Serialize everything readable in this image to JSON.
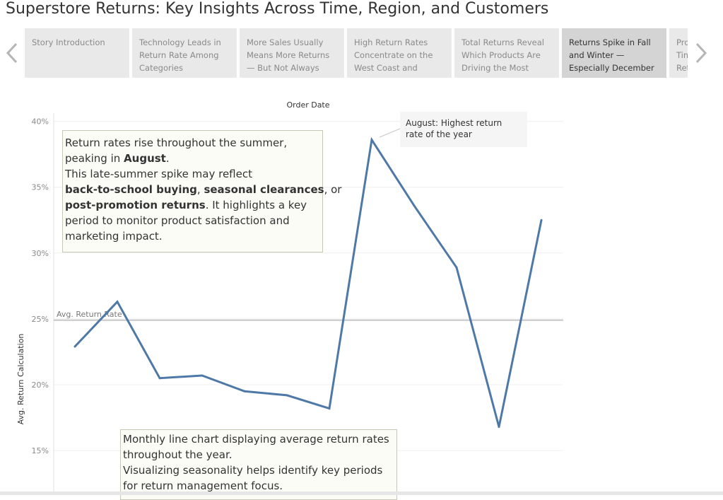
{
  "page_title": "Superstore Returns: Key Insights Across Time, Region, and Customers",
  "story_points": [
    {
      "lines": [
        "Story Introduction"
      ],
      "active": false
    },
    {
      "lines": [
        "Technology Leads in",
        "Return Rate Among",
        "Categories"
      ],
      "active": false
    },
    {
      "lines": [
        "More Sales Usually",
        "Means More Returns",
        "— But Not Always"
      ],
      "active": false
    },
    {
      "lines": [
        "High Return Rates",
        "Concentrate on the",
        "West Coast and"
      ],
      "active": false
    },
    {
      "lines": [
        "Total Returns Reveal",
        "Which Products Are",
        "Driving the Most"
      ],
      "active": false
    },
    {
      "lines": [
        "Returns Spike in Fall",
        "and Winter —",
        "Especially December"
      ],
      "active": true
    },
    {
      "lines": [
        "Pro",
        "Tim",
        "Ret"
      ],
      "active": false
    }
  ],
  "nav": {
    "prev_icon": "chevron-left-icon",
    "next_icon": "chevron-right-icon"
  },
  "colors": {
    "line": "#4e79a7",
    "reference_line": "#c8c8c8",
    "gridline": "#efefef"
  },
  "chart_data": {
    "type": "line",
    "xlabel": "Order Date",
    "ylabel": "Avg. Return Calculation",
    "ylim": [
      0.13,
      0.41
    ],
    "yticks": [
      {
        "value": 0.15,
        "label": "15%"
      },
      {
        "value": 0.2,
        "label": "20%"
      },
      {
        "value": 0.25,
        "label": "25%"
      },
      {
        "value": 0.3,
        "label": "30%"
      },
      {
        "value": 0.35,
        "label": "35%"
      },
      {
        "value": 0.4,
        "label": "40%"
      }
    ],
    "grid": true,
    "series": [
      {
        "values": [
          0.229,
          0.263,
          0.205,
          0.207,
          0.195,
          0.192,
          0.182,
          0.386,
          0.336,
          0.289,
          0.168,
          0.325
        ]
      }
    ],
    "reference_line": {
      "value": 0.249,
      "label": "Avg. Return Rate"
    }
  },
  "annotation_main": {
    "line1": "Return rates rise throughout the summer,",
    "line2_pre": "peaking in ",
    "line2_bold": "August",
    "line2_post": ".",
    "line3": "This late-summer spike may reflect",
    "line4_bold1": "back-to-school buying",
    "line4_mid": ", ",
    "line4_bold2": "seasonal clearances",
    "line4_post": ", or",
    "line5_bold": "post-promotion returns",
    "line5_post": ". It highlights a key",
    "line6": "period to monitor product satisfaction and",
    "line7": "marketing impact."
  },
  "callout": {
    "line1": "August: Highest return",
    "line2": "rate of the year"
  },
  "annotation_bottom": {
    "line1": "Monthly line chart displaying average return rates",
    "line2": "throughout the year.",
    "line3": "Visualizing seasonality helps identify key periods",
    "line4": "for return management focus."
  }
}
